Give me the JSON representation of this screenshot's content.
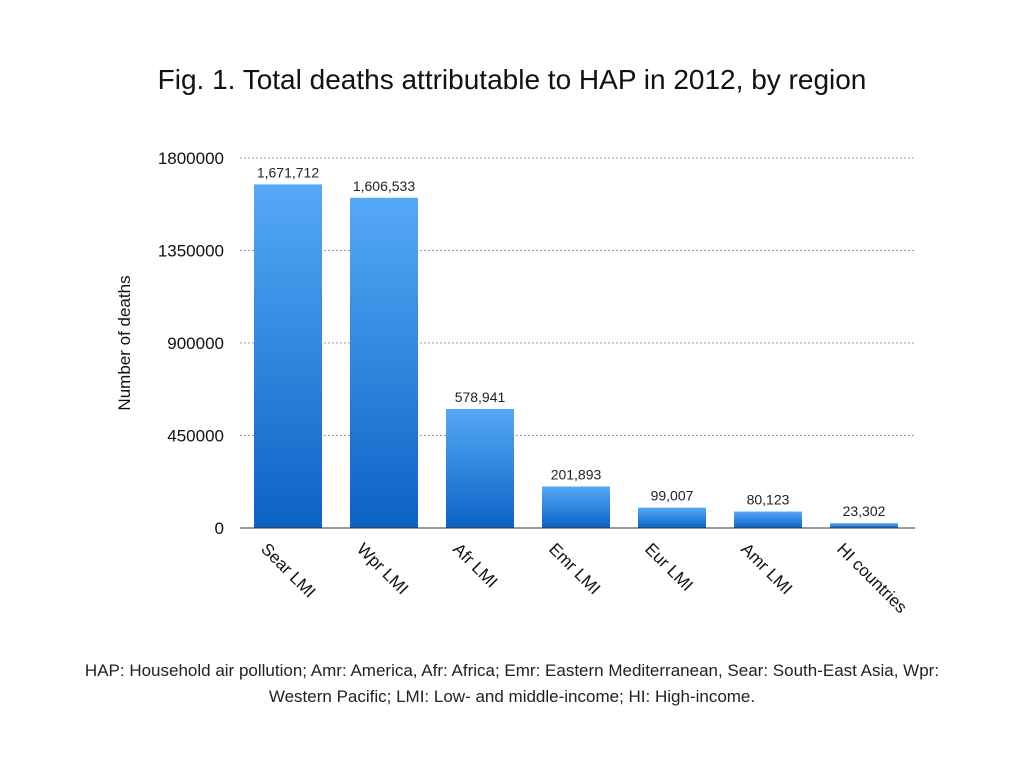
{
  "chart_data": {
    "type": "bar",
    "title": "Fig. 1. Total deaths attributable to HAP in 2012, by region",
    "xlabel": "",
    "ylabel": "Number of deaths",
    "categories": [
      "Sear LMI",
      "Wpr LMI",
      "Afr LMI",
      "Emr LMI",
      "Eur LMI",
      "Amr LMI",
      "HI countries"
    ],
    "values": [
      1671712,
      1606533,
      578941,
      201893,
      99007,
      80123,
      23302
    ],
    "data_labels": [
      "1,671,712",
      "1,606,533",
      "578,941",
      "201,893",
      "99,007",
      "80,123",
      "23,302"
    ],
    "ylim": [
      0,
      1800000
    ],
    "yticks": [
      "0",
      "450000",
      "900000",
      "1350000",
      "1800000"
    ],
    "grid": true,
    "legend": "none",
    "bar_color_top": "#56a9f7",
    "bar_color_bottom": "#0b62c4"
  },
  "caption": "HAP: Household air pollution; Amr: America, Afr: Africa; Emr: Eastern Mediterranean, Sear: South-East Asia, Wpr: Western Pacific; LMI: Low- and middle-income; HI: High-income."
}
